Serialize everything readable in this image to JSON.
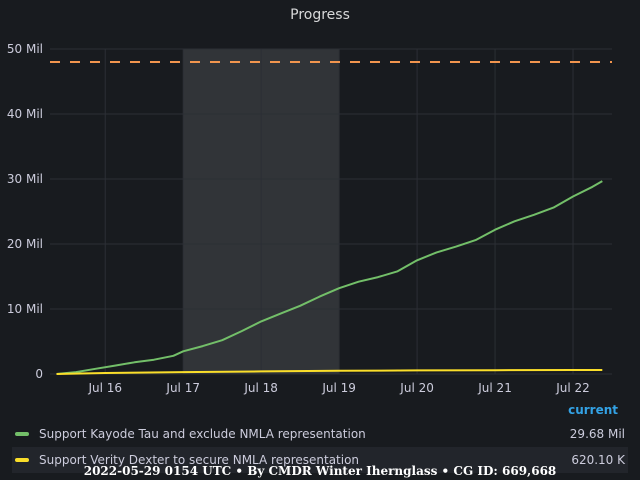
{
  "panel": {
    "title": "Progress"
  },
  "chart_data": {
    "type": "line",
    "title": "Progress",
    "x_unit": "date",
    "x_ticks": [
      "Jul 16",
      "Jul 17",
      "Jul 18",
      "Jul 19",
      "Jul 20",
      "Jul 21",
      "Jul 22"
    ],
    "x_tick_dates": [
      "2022-07-16",
      "2022-07-17",
      "2022-07-18",
      "2022-07-19",
      "2022-07-20",
      "2022-07-21",
      "2022-07-22"
    ],
    "y_ticks": [
      "0",
      "10 Mil",
      "20 Mil",
      "30 Mil",
      "40 Mil",
      "50 Mil"
    ],
    "y_tick_values": [
      0,
      10,
      20,
      30,
      40,
      50
    ],
    "y_unit": "Mil",
    "ylim": [
      0,
      50
    ],
    "xlim": [
      "2022-07-15 07:00",
      "2022-07-22 12:00"
    ],
    "grid": true,
    "highlight_band": {
      "from": "2022-07-17 00:00",
      "to": "2022-07-19 00:00",
      "color": "#3a3d42"
    },
    "threshold": {
      "value": 48,
      "color": "#f2954e",
      "style": "dashed"
    },
    "series": [
      {
        "name": "Support Kayode Tau and exclude NMLA representation",
        "color": "#73bf69",
        "x": [
          "2022-07-15 09:00",
          "2022-07-15 15:00",
          "2022-07-15 21:00",
          "2022-07-16 03:00",
          "2022-07-16 09:00",
          "2022-07-16 15:00",
          "2022-07-16 21:00",
          "2022-07-17 00:00",
          "2022-07-17 06:00",
          "2022-07-17 12:00",
          "2022-07-17 18:00",
          "2022-07-18 00:00",
          "2022-07-18 06:00",
          "2022-07-18 12:00",
          "2022-07-18 18:00",
          "2022-07-19 00:00",
          "2022-07-19 06:00",
          "2022-07-19 12:00",
          "2022-07-19 18:00",
          "2022-07-20 00:00",
          "2022-07-20 06:00",
          "2022-07-20 12:00",
          "2022-07-20 18:00",
          "2022-07-21 00:00",
          "2022-07-21 06:00",
          "2022-07-21 12:00",
          "2022-07-21 18:00",
          "2022-07-22 00:00",
          "2022-07-22 06:00",
          "2022-07-22 09:00"
        ],
        "values": [
          0.0,
          0.3,
          0.8,
          1.3,
          1.8,
          2.2,
          2.8,
          3.5,
          4.3,
          5.2,
          6.6,
          8.1,
          9.3,
          10.5,
          11.9,
          13.2,
          14.2,
          14.9,
          15.8,
          17.5,
          18.7,
          19.6,
          20.6,
          22.2,
          23.5,
          24.5,
          25.6,
          27.3,
          28.8,
          29.68
        ]
      },
      {
        "name": "Support Verity Dexter to secure NMLA representation",
        "color": "#fade2a",
        "x": [
          "2022-07-15 09:00",
          "2022-07-16 00:00",
          "2022-07-17 00:00",
          "2022-07-18 00:00",
          "2022-07-19 00:00",
          "2022-07-20 00:00",
          "2022-07-21 00:00",
          "2022-07-22 00:00",
          "2022-07-22 09:00"
        ],
        "values": [
          0.0,
          0.15,
          0.3,
          0.4,
          0.5,
          0.55,
          0.58,
          0.61,
          0.6201
        ]
      }
    ],
    "legend": {
      "placement": "bottom",
      "column_header": "current",
      "entries": [
        {
          "name": "Support Kayode Tau and exclude NMLA representation",
          "current": "29.68 Mil",
          "color": "#73bf69"
        },
        {
          "name": "Support Verity Dexter to secure NMLA representation",
          "current": "620.10 K",
          "color": "#fade2a"
        }
      ]
    }
  },
  "footer": {
    "text": "2022-05-29 0154 UTC • By CMDR Winter Iherngla​ss • CG ID: 669,668"
  }
}
